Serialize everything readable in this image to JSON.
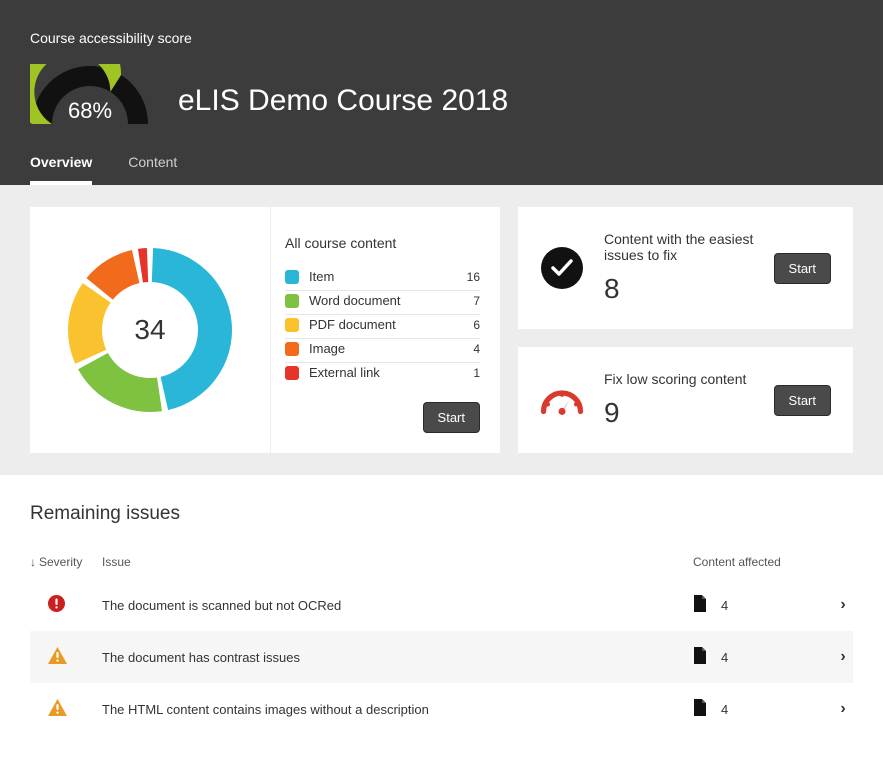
{
  "header": {
    "score_label": "Course accessibility score",
    "score_pct": "68%",
    "course_title": "eLIS Demo Course 2018",
    "gauge": {
      "pct": 0.68,
      "green": "#a0c424",
      "track": "#111111",
      "bg": "#3c3c3c"
    }
  },
  "tabs": [
    {
      "label": "Overview",
      "active": true
    },
    {
      "label": "Content",
      "active": false
    }
  ],
  "donut": {
    "title": "All course content",
    "total": "34",
    "start_button": "Start",
    "items": [
      {
        "label": "Item",
        "count": "16",
        "color": "#29b6d8"
      },
      {
        "label": "Word document",
        "count": "7",
        "color": "#7fc241"
      },
      {
        "label": "PDF document",
        "count": "6",
        "color": "#f9c22e"
      },
      {
        "label": "Image",
        "count": "4",
        "color": "#f26a1b"
      },
      {
        "label": "External link",
        "count": "1",
        "color": "#e5352b"
      }
    ]
  },
  "action_cards": [
    {
      "icon": "check",
      "title": "Content with the easiest issues to fix",
      "num": "8",
      "button": "Start"
    },
    {
      "icon": "gauge",
      "title": "Fix low scoring content",
      "num": "9",
      "button": "Start"
    }
  ],
  "issues": {
    "heading": "Remaining issues",
    "columns": {
      "severity": "Severity",
      "issue": "Issue",
      "affected": "Content affected"
    },
    "rows": [
      {
        "severity": "critical",
        "text": "The document is scanned but not OCRed",
        "affected": "4"
      },
      {
        "severity": "warning",
        "text": "The document has contrast issues",
        "affected": "4"
      },
      {
        "severity": "warning",
        "text": "The HTML content contains images without a description",
        "affected": "4"
      }
    ]
  },
  "colors": {
    "header_bg": "#3c3c3c",
    "card_area_bg": "#ededed",
    "critical": "#cc1f1f",
    "warning": "#e89b24",
    "gauge_icon": "#d93a2b"
  }
}
